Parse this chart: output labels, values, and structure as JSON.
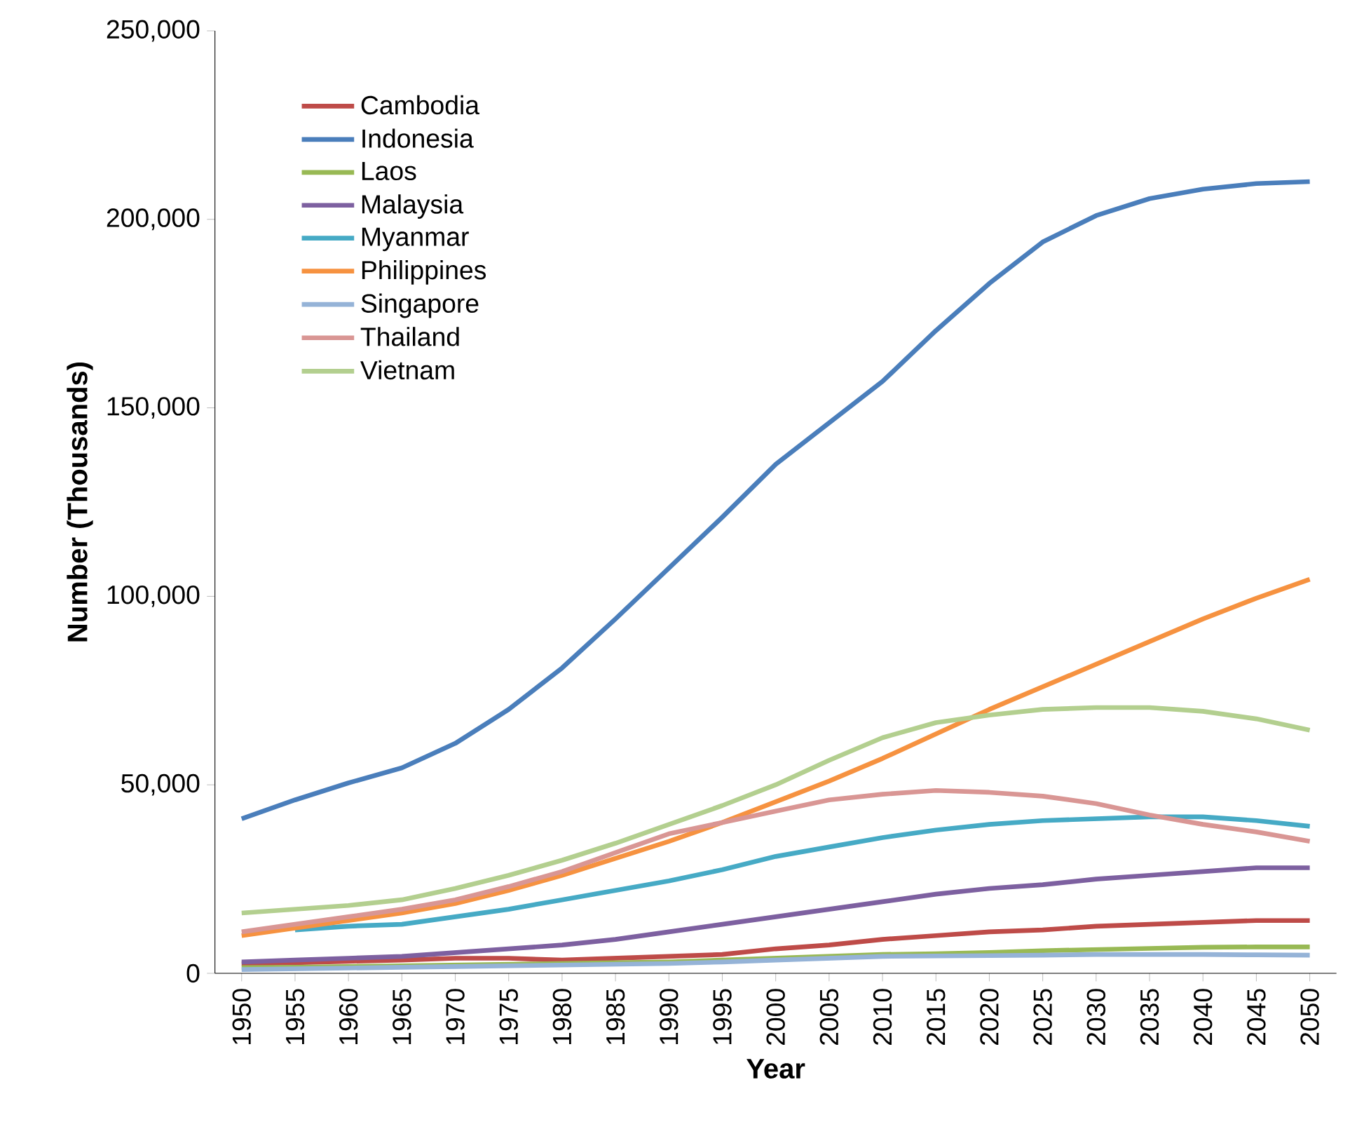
{
  "chart_data": {
    "type": "line",
    "xlabel": "Year",
    "ylabel": "Number (Thousands)",
    "categories": [
      "1950",
      "1955",
      "1960",
      "1965",
      "1970",
      "1975",
      "1980",
      "1985",
      "1990",
      "1995",
      "2000",
      "2005",
      "2010",
      "2015",
      "2020",
      "2025",
      "2030",
      "2035",
      "2040",
      "2045",
      "2050"
    ],
    "ylim": [
      0,
      250000
    ],
    "yticks": [
      {
        "value": 0,
        "label": "0"
      },
      {
        "value": 50000,
        "label": "50,000"
      },
      {
        "value": 100000,
        "label": "100,000"
      },
      {
        "value": 150000,
        "label": "150,000"
      },
      {
        "value": 200000,
        "label": "200,000"
      },
      {
        "value": 250000,
        "label": "250,000"
      }
    ],
    "grid": false,
    "legend": "top left",
    "marker": "none",
    "line_style": "solid",
    "series": [
      {
        "name": "Cambodia",
        "color": "#be4b48",
        "values": [
          2500,
          2800,
          3200,
          3500,
          4000,
          4000,
          3500,
          4000,
          4500,
          5000,
          6500,
          7500,
          9000,
          10000,
          11000,
          11500,
          12500,
          13000,
          13500,
          14000,
          14000
        ]
      },
      {
        "name": "Indonesia",
        "color": "#4a7ebb",
        "values": [
          41000,
          46000,
          50500,
          54500,
          61000,
          70000,
          81000,
          94000,
          107500,
          121000,
          135000,
          146000,
          157000,
          170500,
          183000,
          194000,
          201000,
          205500,
          208000,
          209500,
          210000
        ]
      },
      {
        "name": "Laos",
        "color": "#98b954",
        "values": [
          1500,
          1600,
          1800,
          2000,
          2200,
          2400,
          2600,
          2800,
          3000,
          3500,
          4000,
          4500,
          5000,
          5200,
          5500,
          6000,
          6300,
          6600,
          6900,
          7000,
          7000
        ]
      },
      {
        "name": "Malaysia",
        "color": "#7d60a0",
        "values": [
          3000,
          3500,
          4000,
          4500,
          5500,
          6500,
          7500,
          9000,
          11000,
          13000,
          15000,
          17000,
          19000,
          21000,
          22500,
          23500,
          25000,
          26000,
          27000,
          28000,
          28000
        ]
      },
      {
        "name": "Myanmar",
        "color": "#46aac5",
        "values": [
          null,
          11500,
          12500,
          13000,
          15000,
          17000,
          19500,
          22000,
          24500,
          27500,
          31000,
          33500,
          36000,
          38000,
          39500,
          40500,
          41000,
          41500,
          41500,
          40500,
          39000
        ]
      },
      {
        "name": "Philippines",
        "color": "#f69240",
        "values": [
          10000,
          12000,
          14000,
          16000,
          18500,
          22000,
          26000,
          30500,
          35000,
          40000,
          45500,
          51000,
          57000,
          63500,
          70000,
          76000,
          82000,
          88000,
          94000,
          99500,
          104500
        ]
      },
      {
        "name": "Singapore",
        "color": "#95b3d7",
        "values": [
          1000,
          1200,
          1400,
          1600,
          1800,
          2000,
          2200,
          2400,
          2600,
          3000,
          3500,
          4000,
          4500,
          4600,
          4700,
          4800,
          5000,
          5000,
          5000,
          4900,
          4800
        ]
      },
      {
        "name": "Thailand",
        "color": "#d99694",
        "values": [
          11000,
          13000,
          15000,
          17000,
          19500,
          23000,
          27000,
          32000,
          37000,
          40000,
          43000,
          46000,
          47500,
          48500,
          48000,
          47000,
          45000,
          42000,
          39500,
          37500,
          35000
        ]
      },
      {
        "name": "Vietnam",
        "color": "#b3cf8f",
        "values": [
          16000,
          17000,
          18000,
          19500,
          22500,
          26000,
          30000,
          34500,
          39500,
          44500,
          50000,
          56500,
          62500,
          66500,
          68500,
          70000,
          70500,
          70500,
          69500,
          67500,
          64500
        ]
      }
    ]
  }
}
